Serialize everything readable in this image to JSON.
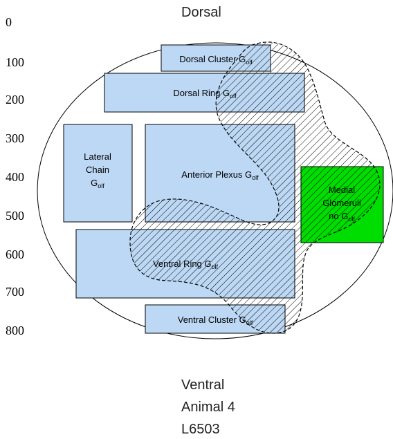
{
  "title": "Dorsal",
  "bottom_label": "Ventral",
  "caption_lines": [
    "Animal 4",
    "L6503"
  ],
  "y_ticks": [
    "0",
    "100",
    "200",
    "300",
    "400",
    "500",
    "600",
    "700",
    "800"
  ],
  "regions": {
    "dorsal_cluster": {
      "main": "Dorsal Cluster G",
      "sub": "olf"
    },
    "dorsal_ring": {
      "main": "Dorsal Ring G",
      "sub": "olf"
    },
    "lateral_chain": {
      "line1": "Lateral",
      "line2": "Chain",
      "line3": "G",
      "sub": "olf"
    },
    "anterior_plexus": {
      "main": "Anterior Plexus G",
      "sub": "olf"
    },
    "medial_glomeruli": {
      "line1": "Medial",
      "line2": "Glomeruli",
      "line3": "no G",
      "sub": "olf"
    },
    "ventral_ring": {
      "main": "Ventral Ring G",
      "sub": "olf"
    },
    "ventral_cluster": {
      "main": "Ventral Cluster G",
      "sub": "olf"
    }
  },
  "colors": {
    "region_fill": "#bcd8f4",
    "medial_fill": "#00dd00",
    "outline": "#000000",
    "hatch": "#000000"
  }
}
